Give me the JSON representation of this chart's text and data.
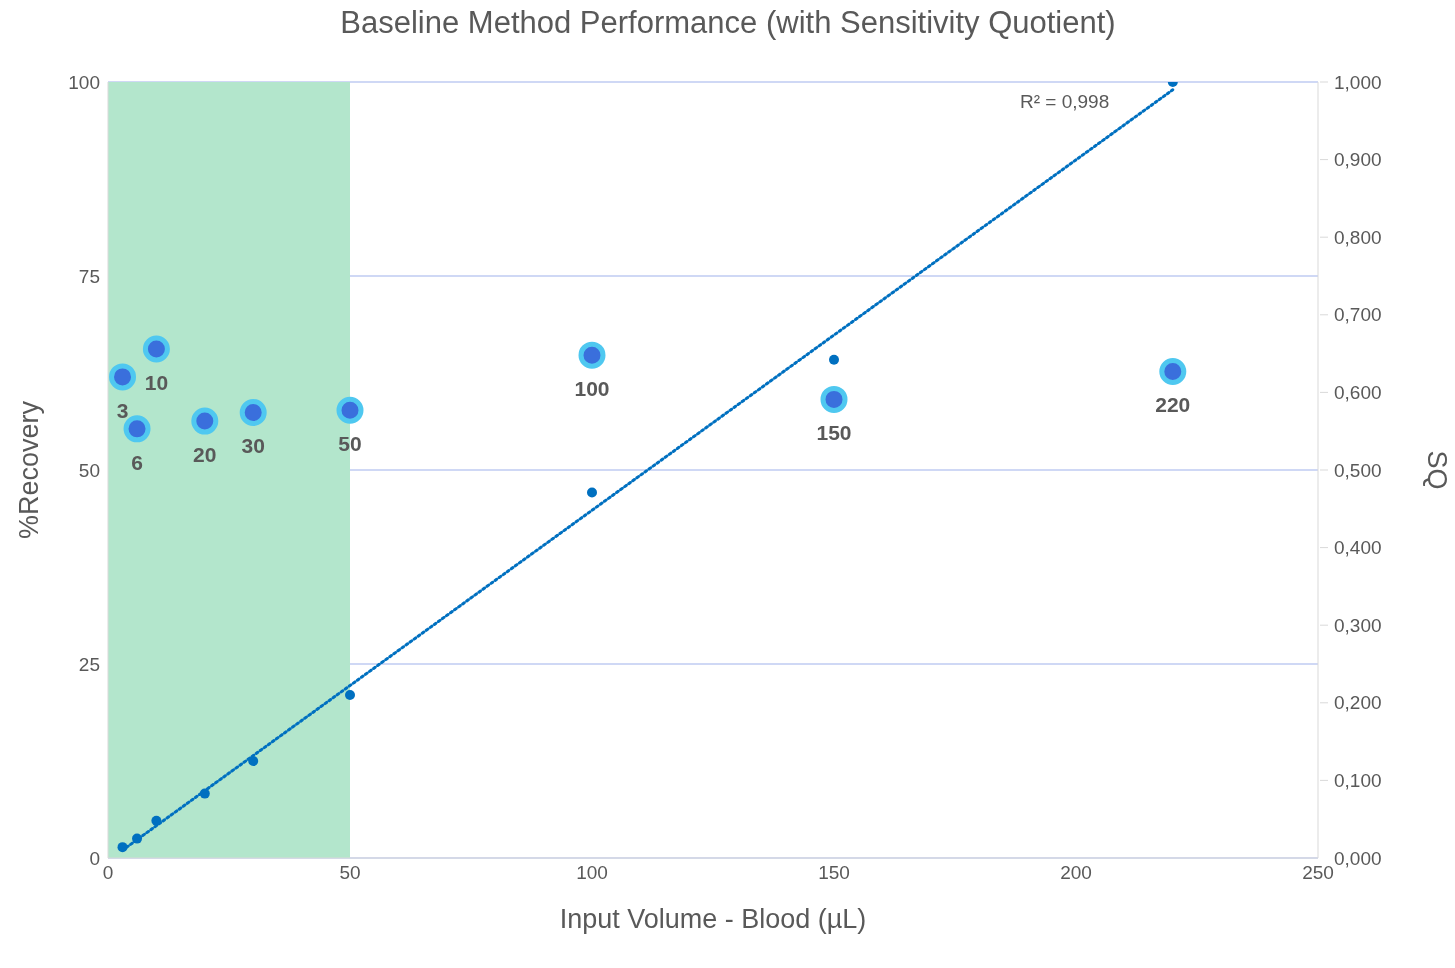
{
  "chart_data": {
    "type": "scatter",
    "title": "Baseline Method Performance (with Sensitivity Quotient)",
    "xlabel": "Input Volume - Blood (µL)",
    "ylabel": "%Recovery",
    "y2label": "SQ",
    "xlim": [
      0,
      250
    ],
    "xticks": [
      0,
      50,
      100,
      150,
      200,
      250
    ],
    "ylim": [
      0,
      100
    ],
    "yticks": [
      0,
      25,
      50,
      75,
      100
    ],
    "y2lim": [
      0,
      1
    ],
    "y2ticks": [
      {
        "value": 0,
        "label": "0,000"
      },
      {
        "value": 0.1,
        "label": "0,100"
      },
      {
        "value": 0.2,
        "label": "0,200"
      },
      {
        "value": 0.3,
        "label": "0,300"
      },
      {
        "value": 0.4,
        "label": "0,400"
      },
      {
        "value": 0.5,
        "label": "0,500"
      },
      {
        "value": 0.6,
        "label": "0,600"
      },
      {
        "value": 0.7,
        "label": "0,700"
      },
      {
        "value": 0.8,
        "label": "0,800"
      },
      {
        "value": 0.9,
        "label": "0,900"
      },
      {
        "value": 1,
        "label": "1,000"
      }
    ],
    "grid": "y",
    "legend": false,
    "bands": [
      {
        "axis": "x",
        "from": 0,
        "to": 50,
        "color": "#b3e6cc"
      }
    ],
    "annotations": [
      "R² = 0,998",
      {
        "text": "3",
        "x": 3,
        "y": 62.0
      },
      {
        "text": "6",
        "x": 6,
        "y": 55.3
      },
      {
        "text": "10",
        "x": 10,
        "y": 65.6
      },
      {
        "text": "20",
        "x": 20,
        "y": 56.3
      },
      {
        "text": "30",
        "x": 30,
        "y": 57.4
      },
      {
        "text": "50",
        "x": 50,
        "y": 57.7
      },
      {
        "text": "100",
        "x": 100,
        "y": 64.8
      },
      {
        "text": "150",
        "x": 150,
        "y": 59.1
      },
      {
        "text": "220",
        "x": 220,
        "y": 62.7
      }
    ],
    "series": [
      {
        "type": "scatter",
        "axis": "y",
        "color": "#3a6fdc",
        "marker": "circle",
        "x": [
          3,
          6,
          10,
          20,
          30,
          50,
          100,
          150,
          220
        ],
        "values": [
          62.0,
          55.3,
          65.6,
          56.3,
          57.4,
          57.7,
          64.8,
          59.1,
          62.7
        ]
      },
      {
        "type": "scatter",
        "axis": "y2",
        "color": "#0070c0",
        "marker": "circle",
        "x": [
          3,
          6,
          10,
          20,
          30,
          50,
          100,
          150,
          220
        ],
        "values": [
          0.014,
          0.025,
          0.048,
          0.083,
          0.125,
          0.21,
          0.471,
          0.642,
          1.0
        ]
      },
      {
        "type": "line",
        "axis": "y2",
        "color": "#0070c0",
        "marker": "none",
        "line_style": "dotted",
        "x": [
          3,
          220
        ],
        "values": [
          0.01,
          0.99
        ]
      }
    ]
  }
}
